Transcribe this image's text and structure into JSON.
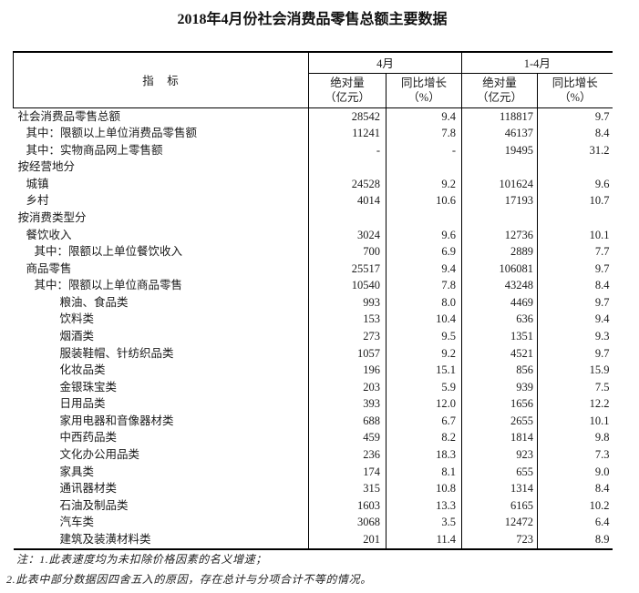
{
  "page_title": "2018年4月份社会消费品零售总额主要数据",
  "colors": {
    "background": "#ffffff",
    "text": "#1a1a1a",
    "border": "#000000"
  },
  "table": {
    "header": {
      "indicator": "指　标",
      "groups": [
        {
          "label": "4月"
        },
        {
          "label": "1-4月"
        }
      ],
      "subs": [
        {
          "label": "绝对量\n（亿元）"
        },
        {
          "label": "同比增长\n（%）"
        },
        {
          "label": "绝对量\n（亿元）"
        },
        {
          "label": "同比增长\n（%）"
        }
      ]
    },
    "rows": [
      {
        "indicator": "社会消费品零售总额",
        "indent": 0,
        "apr_value": "28542",
        "apr_growth": "9.4",
        "ytd_value": "118817",
        "ytd_growth": "9.7"
      },
      {
        "indicator": "其中：限额以上单位消费品零售额",
        "indent": 1,
        "apr_value": "11241",
        "apr_growth": "7.8",
        "ytd_value": "46137",
        "ytd_growth": "8.4"
      },
      {
        "indicator": "其中：实物商品网上零售额",
        "indent": 1,
        "apr_value": "-",
        "apr_growth": "-",
        "ytd_value": "19495",
        "ytd_growth": "31.2"
      },
      {
        "indicator": "按经营地分",
        "indent": 0,
        "apr_value": "",
        "apr_growth": "",
        "ytd_value": "",
        "ytd_growth": ""
      },
      {
        "indicator": "城镇",
        "indent": 1,
        "apr_value": "24528",
        "apr_growth": "9.2",
        "ytd_value": "101624",
        "ytd_growth": "9.6"
      },
      {
        "indicator": "乡村",
        "indent": 1,
        "apr_value": "4014",
        "apr_growth": "10.6",
        "ytd_value": "17193",
        "ytd_growth": "10.7"
      },
      {
        "indicator": "按消费类型分",
        "indent": 0,
        "apr_value": "",
        "apr_growth": "",
        "ytd_value": "",
        "ytd_growth": ""
      },
      {
        "indicator": "餐饮收入",
        "indent": 1,
        "apr_value": "3024",
        "apr_growth": "9.6",
        "ytd_value": "12736",
        "ytd_growth": "10.1"
      },
      {
        "indicator": "其中：限额以上单位餐饮收入",
        "indent": 2,
        "apr_value": "700",
        "apr_growth": "6.9",
        "ytd_value": "2889",
        "ytd_growth": "7.7"
      },
      {
        "indicator": "商品零售",
        "indent": 1,
        "apr_value": "25517",
        "apr_growth": "9.4",
        "ytd_value": "106081",
        "ytd_growth": "9.7"
      },
      {
        "indicator": "其中：限额以上单位商品零售",
        "indent": 2,
        "apr_value": "10540",
        "apr_growth": "7.8",
        "ytd_value": "43248",
        "ytd_growth": "8.4"
      },
      {
        "indicator": "粮油、食品类",
        "indent": 3,
        "apr_value": "993",
        "apr_growth": "8.0",
        "ytd_value": "4469",
        "ytd_growth": "9.7"
      },
      {
        "indicator": "饮料类",
        "indent": 3,
        "apr_value": "153",
        "apr_growth": "10.4",
        "ytd_value": "636",
        "ytd_growth": "9.4"
      },
      {
        "indicator": "烟酒类",
        "indent": 3,
        "apr_value": "273",
        "apr_growth": "9.5",
        "ytd_value": "1351",
        "ytd_growth": "9.3"
      },
      {
        "indicator": "服装鞋帽、针纺织品类",
        "indent": 3,
        "apr_value": "1057",
        "apr_growth": "9.2",
        "ytd_value": "4521",
        "ytd_growth": "9.7"
      },
      {
        "indicator": "化妆品类",
        "indent": 3,
        "apr_value": "196",
        "apr_growth": "15.1",
        "ytd_value": "856",
        "ytd_growth": "15.9"
      },
      {
        "indicator": "金银珠宝类",
        "indent": 3,
        "apr_value": "203",
        "apr_growth": "5.9",
        "ytd_value": "939",
        "ytd_growth": "7.5"
      },
      {
        "indicator": "日用品类",
        "indent": 3,
        "apr_value": "393",
        "apr_growth": "12.0",
        "ytd_value": "1656",
        "ytd_growth": "12.2"
      },
      {
        "indicator": "家用电器和音像器材类",
        "indent": 3,
        "apr_value": "688",
        "apr_growth": "6.7",
        "ytd_value": "2655",
        "ytd_growth": "10.1"
      },
      {
        "indicator": "中西药品类",
        "indent": 3,
        "apr_value": "459",
        "apr_growth": "8.2",
        "ytd_value": "1814",
        "ytd_growth": "9.8"
      },
      {
        "indicator": "文化办公用品类",
        "indent": 3,
        "apr_value": "236",
        "apr_growth": "18.3",
        "ytd_value": "923",
        "ytd_growth": "7.3"
      },
      {
        "indicator": "家具类",
        "indent": 3,
        "apr_value": "174",
        "apr_growth": "8.1",
        "ytd_value": "655",
        "ytd_growth": "9.0"
      },
      {
        "indicator": "通讯器材类",
        "indent": 3,
        "apr_value": "315",
        "apr_growth": "10.8",
        "ytd_value": "1314",
        "ytd_growth": "8.4"
      },
      {
        "indicator": "石油及制品类",
        "indent": 3,
        "apr_value": "1603",
        "apr_growth": "13.3",
        "ytd_value": "6165",
        "ytd_growth": "10.2"
      },
      {
        "indicator": "汽车类",
        "indent": 3,
        "apr_value": "3068",
        "apr_growth": "3.5",
        "ytd_value": "12472",
        "ytd_growth": "6.4"
      },
      {
        "indicator": "建筑及装潢材料类",
        "indent": 3,
        "apr_value": "201",
        "apr_growth": "11.4",
        "ytd_value": "723",
        "ytd_growth": "8.9"
      }
    ]
  },
  "notes": [
    "注：1.此表速度均为未扣除价格因素的名义增速；",
    "2.此表中部分数据因四舍五入的原因，存在总计与分项合计不等的情况。"
  ]
}
